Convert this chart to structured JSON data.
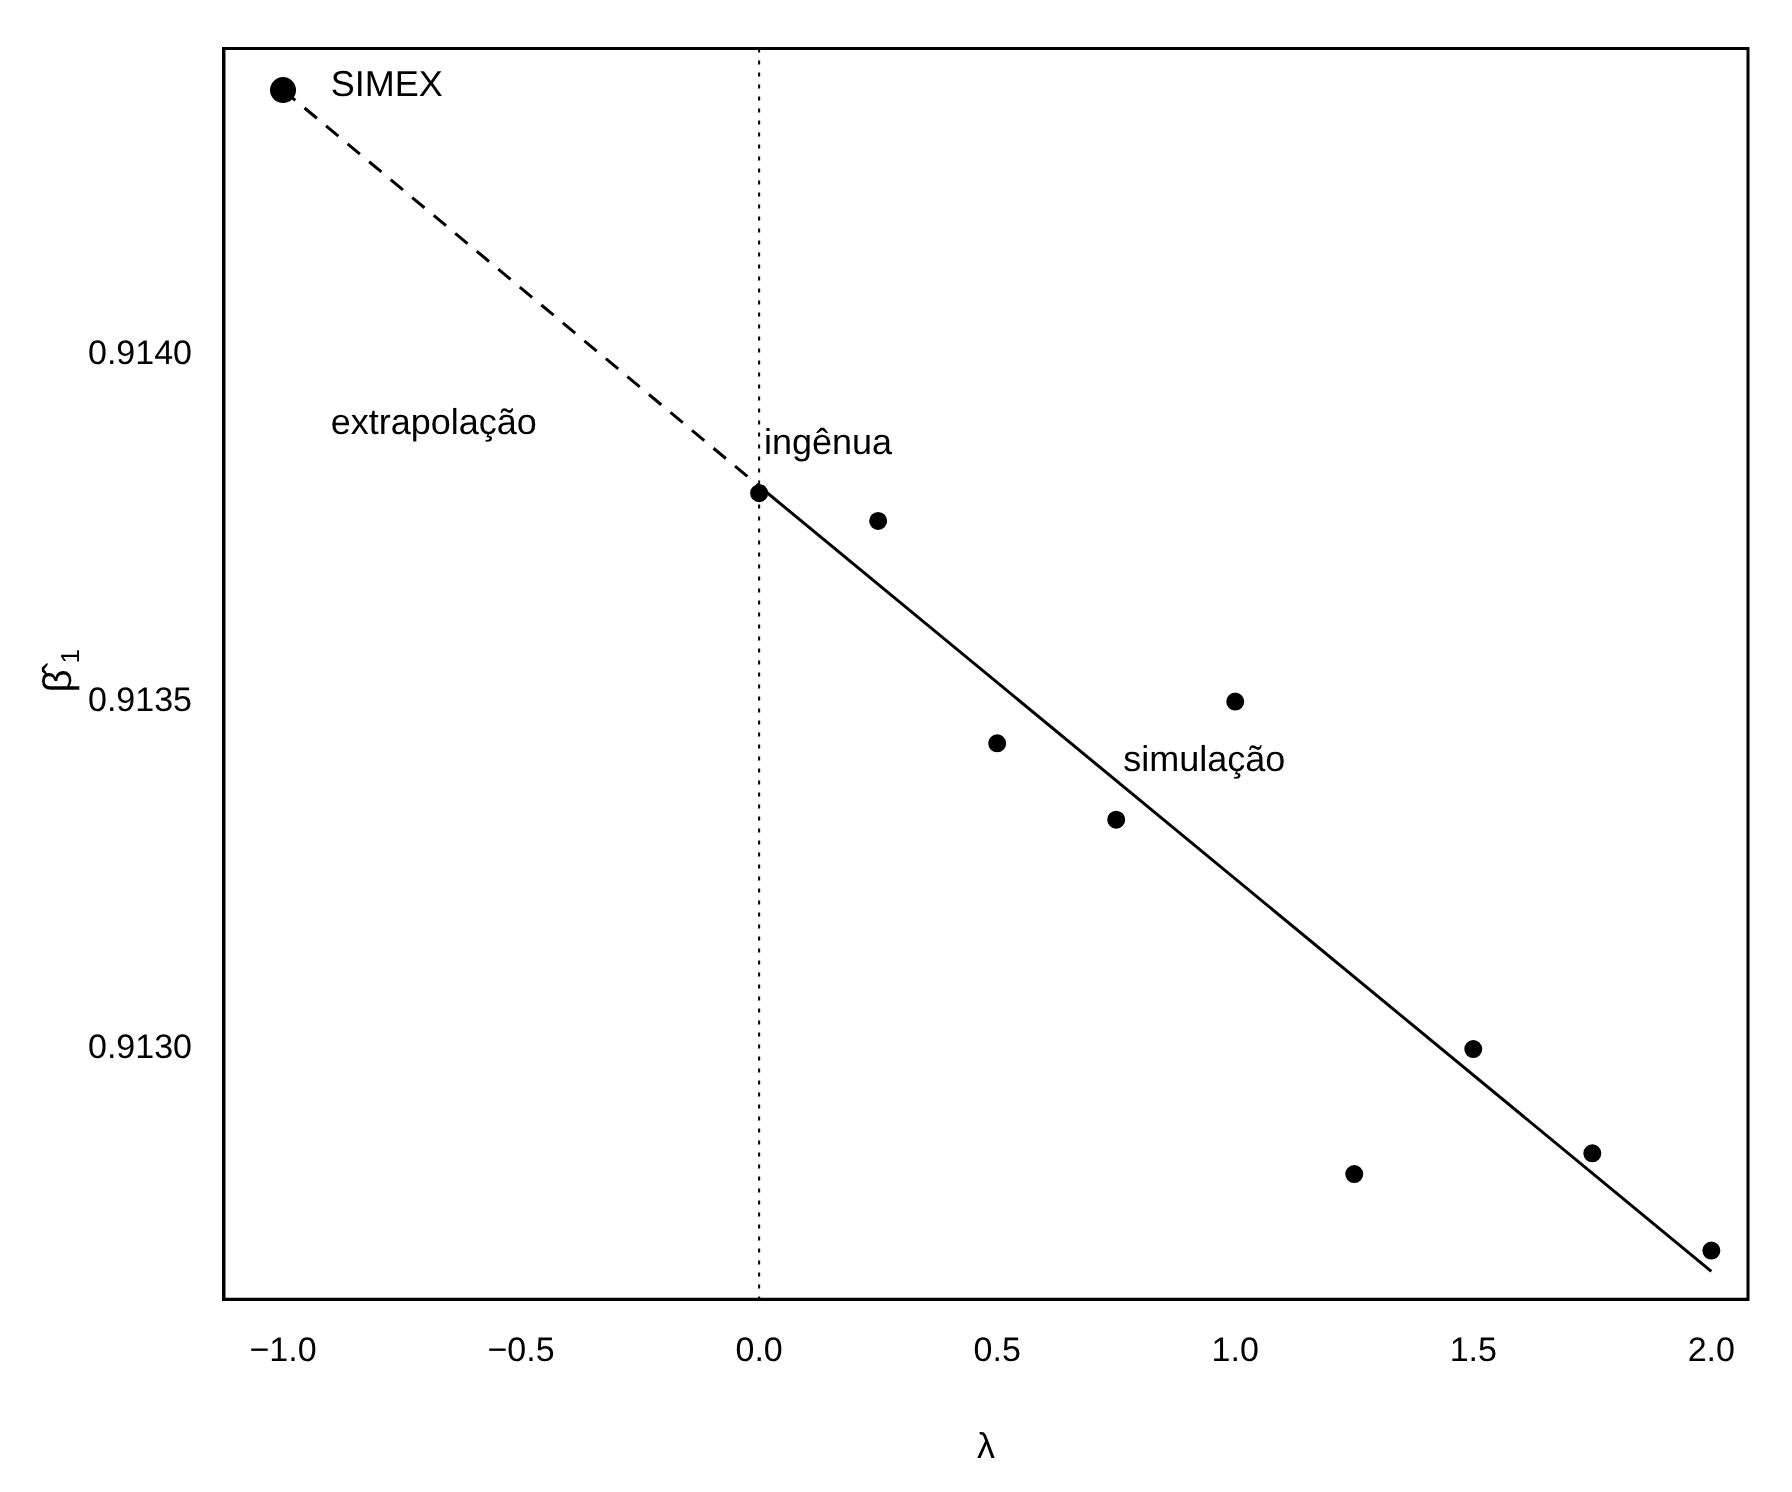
{
  "chart_data": {
    "type": "scatter",
    "xlabel": "λ",
    "ylabel": "β̂$_{1}$",
    "xlim": [
      -1.124,
      2.077
    ],
    "ylim": [
      0.91264,
      0.91444
    ],
    "xticks": [
      {
        "value": -1,
        "label": "−1.0"
      },
      {
        "value": -0.5,
        "label": "−0.5"
      },
      {
        "value": 0,
        "label": "0.0"
      },
      {
        "value": 0.5,
        "label": "0.5"
      },
      {
        "value": 1,
        "label": "1.0"
      },
      {
        "value": 1.5,
        "label": "1.5"
      },
      {
        "value": 2,
        "label": "2.0"
      }
    ],
    "yticks": [
      {
        "value": 0.913,
        "label": "0.9130"
      },
      {
        "value": 0.9135,
        "label": "0.9135"
      },
      {
        "value": 0.914,
        "label": "0.9140"
      }
    ],
    "grid": false,
    "legend": false,
    "marker": "circle",
    "series": [
      {
        "type": "scatter",
        "color": "#000000",
        "x": [
          0,
          0.25,
          0.5,
          0.75,
          1,
          1.25,
          1.5,
          1.75,
          2
        ],
        "values": [
          0.9138,
          0.91376,
          0.91344,
          0.91333,
          0.9135,
          0.91282,
          0.913,
          0.91285,
          0.91271
        ]
      },
      {
        "type": "scatter",
        "color": "#000000",
        "x": [
          -1
        ],
        "values": [
          0.91438
        ]
      },
      {
        "type": "line",
        "color": "#000000",
        "marker": "none",
        "line_style": "solid",
        "x": [
          0,
          2
        ],
        "values": [
          0.91381,
          0.91268
        ]
      },
      {
        "type": "line",
        "color": "#000000",
        "marker": "none",
        "line_style": "dashed",
        "x": [
          -1,
          0
        ],
        "values": [
          0.91438,
          0.91381
        ]
      }
    ],
    "ref_lines": [
      {
        "axis": "x",
        "value": 0,
        "color": "#000000",
        "line_style": "dotted"
      }
    ],
    "annotations": [
      "SIMEX",
      "extrapolação",
      {
        "text": "ingênua",
        "x": 0.01,
        "y": 0.91387
      },
      "simulação"
    ]
  }
}
